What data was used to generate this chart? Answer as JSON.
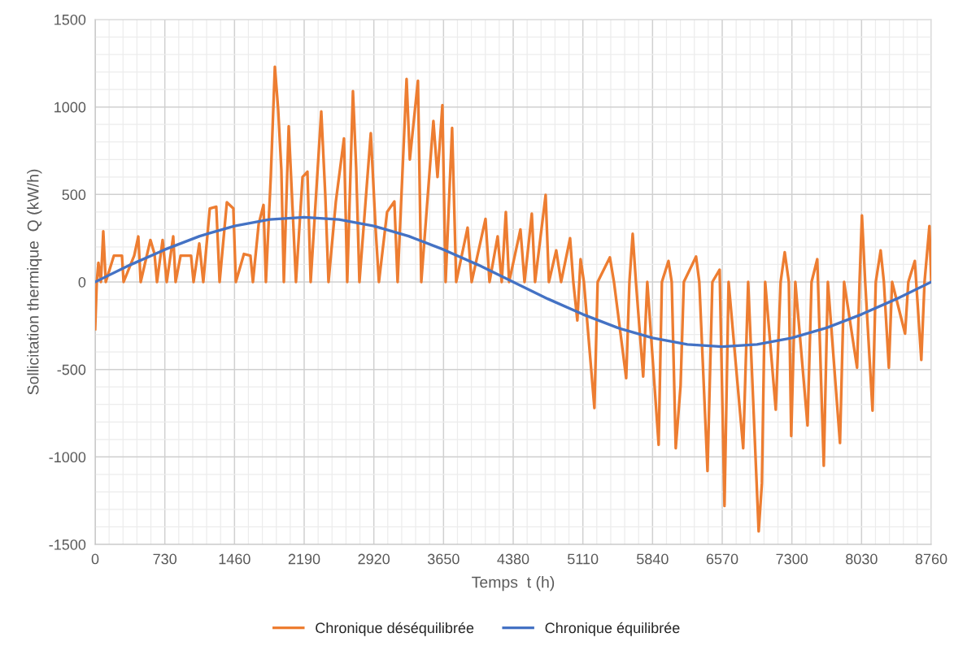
{
  "chart_data": {
    "type": "line",
    "xlabel": "Temps  t (h)",
    "ylabel": "Sollicitation thermique  Q (kW/h)",
    "xlim": [
      0,
      8760
    ],
    "xticks": [
      0,
      730,
      1460,
      2190,
      2920,
      3650,
      4380,
      5110,
      5840,
      6570,
      7300,
      8030,
      8760
    ],
    "ylim": [
      -1500,
      1500
    ],
    "yticks": [
      -1500,
      -1000,
      -500,
      0,
      500,
      1000,
      1500
    ],
    "grid": true,
    "legend": "bottom",
    "marker": "none",
    "line_style": "solid",
    "series": [
      {
        "name": "Chronique déséquilibrée",
        "color": "#ed7d31",
        "x": [
          0,
          17,
          34,
          60,
          85,
          111,
          196,
          281,
          298,
          409,
          452,
          477,
          579,
          622,
          648,
          707,
          750,
          818,
          843,
          895,
          1005,
          1031,
          1091,
          1133,
          1201,
          1269,
          1304,
          1380,
          1448,
          1474,
          1559,
          1627,
          1653,
          1713,
          1764,
          1789,
          1840,
          1883,
          1917,
          1951,
          1977,
          2028,
          2070,
          2104,
          2173,
          2224,
          2258,
          2369,
          2411,
          2445,
          2522,
          2607,
          2641,
          2701,
          2735,
          2769,
          2888,
          2939,
          2973,
          3059,
          3135,
          3169,
          3263,
          3297,
          3382,
          3417,
          3544,
          3587,
          3638,
          3672,
          3740,
          3783,
          3902,
          3945,
          4090,
          4132,
          4217,
          4260,
          4303,
          4337,
          4456,
          4499,
          4575,
          4609,
          4720,
          4754,
          4831,
          4882,
          4976,
          5010,
          5052,
          5086,
          5121,
          5231,
          5265,
          5393,
          5436,
          5564,
          5598,
          5632,
          5666,
          5742,
          5785,
          5904,
          5938,
          6007,
          6041,
          6083,
          6134,
          6168,
          6296,
          6330,
          6416,
          6467,
          6543,
          6594,
          6637,
          6790,
          6842,
          6952,
          6986,
          7020,
          7131,
          7182,
          7225,
          7268,
          7293,
          7336,
          7464,
          7506,
          7566,
          7634,
          7677,
          7804,
          7847,
          7983,
          8009,
          8034,
          8068,
          8145,
          8179,
          8230,
          8264,
          8316,
          8350,
          8486,
          8520,
          8588,
          8656,
          8690,
          8741,
          8760
        ],
        "values": [
          -270,
          0,
          110,
          0,
          290,
          0,
          150,
          150,
          0,
          150,
          260,
          0,
          240,
          160,
          0,
          240,
          0,
          260,
          0,
          150,
          150,
          0,
          220,
          0,
          420,
          430,
          0,
          455,
          420,
          0,
          160,
          150,
          0,
          330,
          440,
          0,
          600,
          1230,
          990,
          640,
          0,
          890,
          400,
          0,
          600,
          630,
          0,
          975,
          500,
          0,
          460,
          820,
          0,
          1090,
          650,
          0,
          850,
          300,
          0,
          400,
          460,
          0,
          1160,
          700,
          1150,
          0,
          920,
          600,
          1010,
          0,
          880,
          0,
          310,
          0,
          360,
          0,
          260,
          0,
          400,
          0,
          300,
          0,
          390,
          0,
          497,
          0,
          180,
          0,
          250,
          0,
          -220,
          130,
          0,
          -720,
          0,
          140,
          0,
          -550,
          0,
          275,
          0,
          -540,
          0,
          -930,
          0,
          120,
          0,
          -950,
          -590,
          0,
          145,
          0,
          -1080,
          0,
          70,
          -1280,
          0,
          -950,
          0,
          -1425,
          -1150,
          0,
          -730,
          0,
          170,
          0,
          -880,
          0,
          -820,
          0,
          130,
          -1050,
          0,
          -920,
          0,
          -490,
          0,
          380,
          0,
          -735,
          0,
          180,
          0,
          -490,
          0,
          -295,
          0,
          120,
          -445,
          0,
          320,
          0
        ]
      },
      {
        "name": "Chronique équilibrée",
        "color": "#4472c4",
        "x": [
          0,
          365,
          730,
          1095,
          1460,
          1825,
          2190,
          2555,
          2920,
          3285,
          3650,
          4015,
          4380,
          4745,
          5110,
          5475,
          5840,
          6205,
          6570,
          6935,
          7300,
          7665,
          8030,
          8395,
          8760
        ],
        "values": [
          0,
          97,
          185,
          262,
          320,
          357,
          370,
          357,
          320,
          262,
          185,
          97,
          0,
          -97,
          -185,
          -262,
          -320,
          -357,
          -370,
          -357,
          -320,
          -262,
          -185,
          -97,
          0
        ]
      }
    ]
  }
}
